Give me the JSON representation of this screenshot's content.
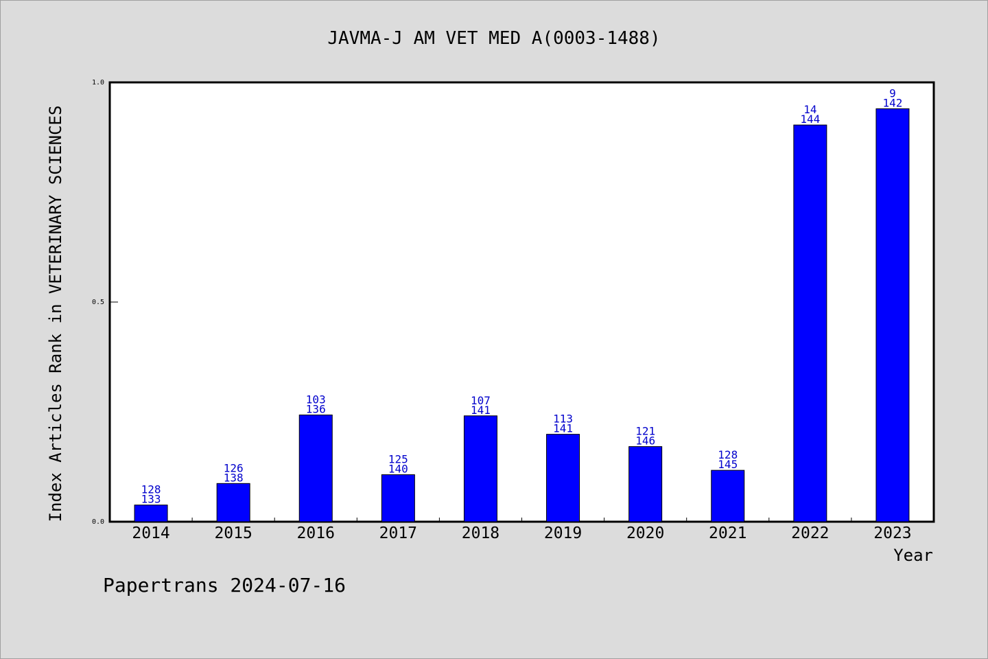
{
  "chart_data": {
    "type": "bar",
    "title": "JAVMA-J AM VET MED A(0003-1488)",
    "xlabel": "Year",
    "ylabel": "Index Articles Rank in VETERINARY SCIENCES",
    "categories": [
      "2014",
      "2015",
      "2016",
      "2017",
      "2018",
      "2019",
      "2020",
      "2021",
      "2022",
      "2023"
    ],
    "values": [
      0.038,
      0.087,
      0.243,
      0.107,
      0.241,
      0.199,
      0.171,
      0.117,
      0.903,
      0.94
    ],
    "rank_labels": [
      "128",
      "126",
      "103",
      "125",
      "107",
      "113",
      "121",
      "128",
      "14",
      "9"
    ],
    "total_labels": [
      "133",
      "138",
      "136",
      "140",
      "141",
      "141",
      "146",
      "145",
      "144",
      "142"
    ],
    "yticks": [
      "0.0",
      "0.5",
      "1.0"
    ],
    "ylim": [
      0,
      1
    ],
    "bar_color": "#0000ff",
    "label_color": "#0000cc",
    "grid": false,
    "legend": "none"
  },
  "footer": {
    "credit": "Papertrans 2024-07-16"
  }
}
